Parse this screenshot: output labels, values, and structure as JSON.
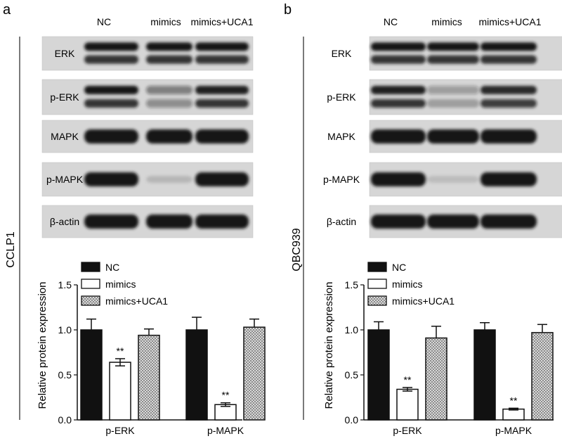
{
  "panels": [
    {
      "letter": "a",
      "cell_line": "CCLP1",
      "lanes": [
        "NC",
        "mimics",
        "mimics+UCA1"
      ],
      "blots": [
        {
          "label": "ERK",
          "pattern": "double",
          "intensity": [
            1.0,
            1.0,
            1.0
          ]
        },
        {
          "label": "p-ERK",
          "pattern": "double",
          "intensity": [
            1.0,
            0.45,
            0.95
          ]
        },
        {
          "label": "MAPK",
          "pattern": "single",
          "intensity": [
            1.0,
            1.0,
            1.0
          ]
        },
        {
          "label": "p-MAPK",
          "pattern": "single",
          "intensity": [
            1.0,
            0.15,
            1.0
          ]
        },
        {
          "label": "β-actin",
          "pattern": "single",
          "intensity": [
            1.0,
            1.0,
            1.0
          ]
        }
      ]
    },
    {
      "letter": "b",
      "cell_line": "QBC939",
      "lanes": [
        "NC",
        "mimics",
        "mimics+UCA1"
      ],
      "blots": [
        {
          "label": "ERK",
          "pattern": "double",
          "intensity": [
            1.0,
            1.0,
            1.0
          ]
        },
        {
          "label": "p-ERK",
          "pattern": "double",
          "intensity": [
            0.95,
            0.3,
            0.9
          ]
        },
        {
          "label": "MAPK",
          "pattern": "single",
          "intensity": [
            1.0,
            1.0,
            1.0
          ]
        },
        {
          "label": "p-MAPK",
          "pattern": "single",
          "intensity": [
            1.0,
            0.12,
            1.0
          ]
        },
        {
          "label": "β-actin",
          "pattern": "single",
          "intensity": [
            1.0,
            1.0,
            1.0
          ]
        }
      ]
    }
  ],
  "chart_data": [
    {
      "type": "bar",
      "categories": [
        "p-ERK",
        "p-MAPK"
      ],
      "series": [
        {
          "name": "NC",
          "values": [
            1.0,
            1.0
          ],
          "errors": [
            0.12,
            0.14
          ],
          "color": "#111111",
          "pattern": "solid"
        },
        {
          "name": "mimics",
          "values": [
            0.64,
            0.17
          ],
          "errors": [
            0.04,
            0.02
          ],
          "color": "#ffffff",
          "pattern": "open"
        },
        {
          "name": "mimics+UCA1",
          "values": [
            0.94,
            1.03
          ],
          "errors": [
            0.07,
            0.09
          ],
          "color": "#bdbdbd",
          "pattern": "dotted"
        }
      ],
      "significance": [
        {
          "category": "p-ERK",
          "series": "mimics",
          "label": "**"
        },
        {
          "category": "p-MAPK",
          "series": "mimics",
          "label": "**"
        }
      ],
      "ylabel": "Relative protein expression",
      "ylim": [
        0.0,
        1.5
      ],
      "yticks": [
        "0.0",
        "0.5",
        "1.0",
        "1.5"
      ],
      "legend_position": "top-left"
    },
    {
      "type": "bar",
      "categories": [
        "p-ERK",
        "p-MAPK"
      ],
      "series": [
        {
          "name": "NC",
          "values": [
            1.0,
            1.0
          ],
          "errors": [
            0.09,
            0.08
          ],
          "color": "#111111",
          "pattern": "solid"
        },
        {
          "name": "mimics",
          "values": [
            0.34,
            0.12
          ],
          "errors": [
            0.02,
            0.01
          ],
          "color": "#ffffff",
          "pattern": "open"
        },
        {
          "name": "mimics+UCA1",
          "values": [
            0.91,
            0.97
          ],
          "errors": [
            0.13,
            0.09
          ],
          "color": "#bdbdbd",
          "pattern": "dotted"
        }
      ],
      "significance": [
        {
          "category": "p-ERK",
          "series": "mimics",
          "label": "**"
        },
        {
          "category": "p-MAPK",
          "series": "mimics",
          "label": "**"
        }
      ],
      "ylabel": "Relative protein expression",
      "ylim": [
        0.0,
        1.5
      ],
      "yticks": [
        "0.0",
        "0.5",
        "1.0",
        "1.5"
      ],
      "legend_position": "top-left"
    }
  ]
}
